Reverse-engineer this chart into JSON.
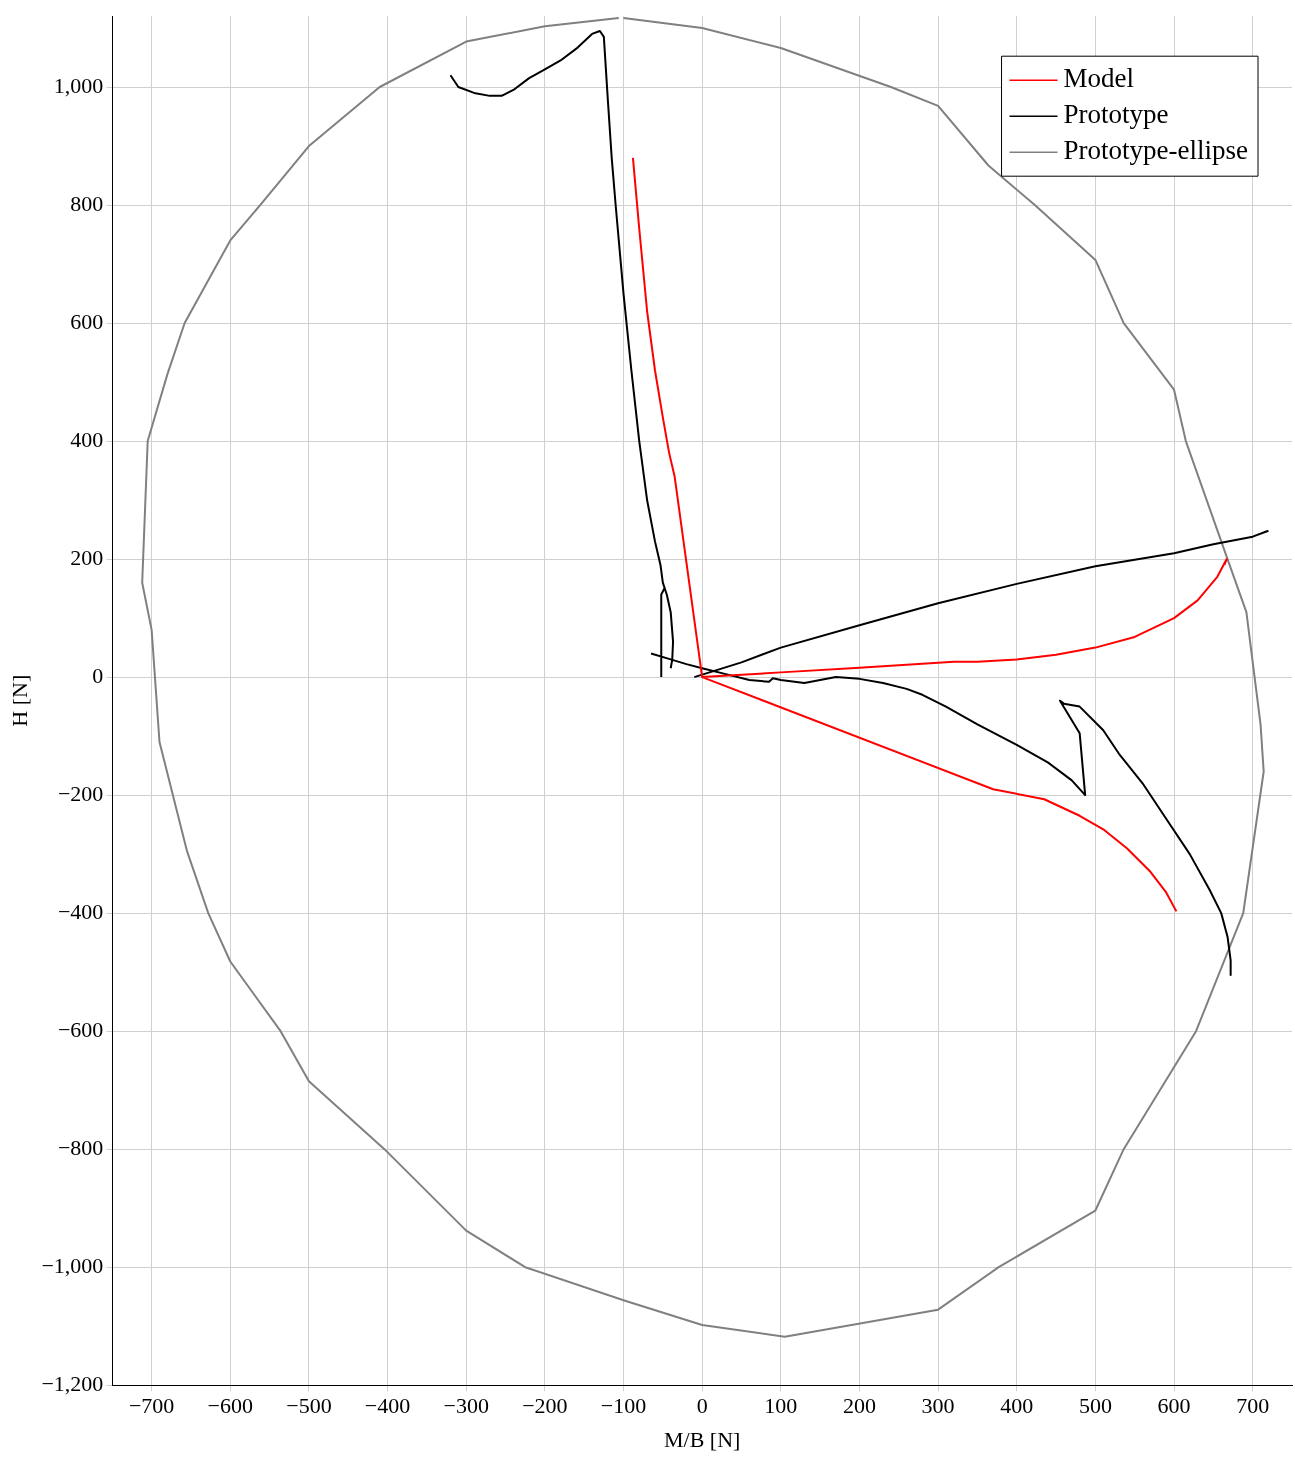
{
  "chart_data": {
    "type": "line",
    "xlabel": "M/B [N]",
    "ylabel": "H [N]",
    "xlim": [
      -750,
      750
    ],
    "ylim": [
      -1200,
      1120
    ],
    "xticks": [
      {
        "value": -700,
        "label": "−700"
      },
      {
        "value": -600,
        "label": "−600"
      },
      {
        "value": -500,
        "label": "−500"
      },
      {
        "value": -400,
        "label": "−400"
      },
      {
        "value": -300,
        "label": "−300"
      },
      {
        "value": -200,
        "label": "−200"
      },
      {
        "value": -100,
        "label": "−100"
      },
      0,
      100,
      200,
      300,
      400,
      500,
      600,
      700
    ],
    "yticks": [
      {
        "value": -1200,
        "label": "−1,200"
      },
      {
        "value": -1000,
        "label": "−1,000"
      },
      {
        "value": -800,
        "label": "−800"
      },
      {
        "value": -600,
        "label": "−600"
      },
      {
        "value": -400,
        "label": "−400"
      },
      {
        "value": -200,
        "label": "−200"
      },
      0,
      200,
      400,
      600,
      800,
      {
        "value": 1000,
        "label": "1,000"
      }
    ],
    "grid": true,
    "legend": "top right",
    "marker": "none",
    "line_style": "solid",
    "series": [
      {
        "name": "Model",
        "color": "#ff0000",
        "x": [
          -88,
          -80,
          -70,
          -60,
          -50,
          -42,
          -35,
          0,
          370,
          435,
          480,
          510,
          540,
          570,
          590,
          603,
          null,
          0,
          100,
          200,
          320,
          350,
          400,
          450,
          500,
          550,
          600,
          630,
          655,
          667,
          664
        ],
        "values": [
          880,
          760,
          620,
          520,
          440,
          380,
          340,
          0,
          -190,
          -207,
          -235,
          -258,
          -290,
          -330,
          -365,
          -397,
          null,
          0,
          8,
          16,
          26,
          26,
          30,
          38,
          50,
          68,
          100,
          130,
          170,
          200,
          190
        ]
      },
      {
        "name": "Prototype",
        "color": "#000000",
        "x": [
          -320,
          -310,
          -290,
          -270,
          -255,
          -240,
          -220,
          -200,
          -180,
          -160,
          -140,
          -130,
          -125,
          -120,
          -115,
          -110,
          -100,
          -90,
          -80,
          -70,
          -60,
          -53,
          -50,
          -45,
          -40,
          -37,
          -38,
          -40,
          null,
          -52,
          -52,
          -48,
          null,
          -65,
          -40,
          -20,
          0,
          30,
          60,
          85,
          90,
          100,
          130,
          150,
          170,
          200,
          230,
          260,
          280,
          310,
          350,
          400,
          440,
          470,
          487,
          480,
          455,
          460,
          480,
          510,
          530,
          560,
          590,
          620,
          645,
          660,
          668,
          672,
          672,
          null,
          -10,
          50,
          100,
          200,
          300,
          400,
          500,
          600,
          650,
          700,
          720
        ],
        "values": [
          1020,
          1000,
          990,
          985,
          985,
          995,
          1015,
          1030,
          1045,
          1065,
          1090,
          1095,
          1085,
          980,
          880,
          800,
          650,
          520,
          400,
          300,
          230,
          190,
          160,
          140,
          110,
          60,
          30,
          15,
          null,
          0,
          140,
          150,
          null,
          40,
          30,
          22,
          15,
          5,
          -5,
          -8,
          -2,
          -5,
          -10,
          -5,
          0,
          -3,
          -10,
          -20,
          -30,
          -50,
          -80,
          -115,
          -145,
          -175,
          -200,
          -95,
          -40,
          -45,
          -50,
          -90,
          -130,
          -180,
          -240,
          -300,
          -360,
          -400,
          -440,
          -480,
          -505,
          null,
          0,
          25,
          50,
          88,
          125,
          158,
          188,
          210,
          225,
          238,
          248
        ]
      },
      {
        "name": "Prototype-ellipse",
        "color": "#808080",
        "x": [
          -100,
          0,
          100,
          240,
          300,
          364,
          423,
          500,
          536,
          600,
          615,
          668,
          692,
          710,
          714,
          688,
          628,
          536,
          500,
          377,
          300,
          105,
          0,
          -100,
          -225,
          -300,
          -404,
          -500,
          -536,
          -600,
          -628,
          -655,
          -690,
          -700,
          -712,
          -705,
          -680,
          -658,
          -600,
          -562,
          -500,
          -410,
          -300,
          -200,
          -106
        ],
        "values": [
          1117,
          1100,
          1066,
          1000,
          968,
          867,
          800,
          707,
          600,
          487,
          400,
          200,
          110,
          -80,
          -160,
          -400,
          -600,
          -800,
          -904,
          -1000,
          -1072,
          -1118,
          -1098,
          -1056,
          -1000,
          -938,
          -800,
          -685,
          -600,
          -482,
          -400,
          -295,
          -110,
          80,
          160,
          400,
          513,
          600,
          740,
          800,
          900,
          1000,
          1077,
          1103,
          1117
        ]
      }
    ]
  }
}
